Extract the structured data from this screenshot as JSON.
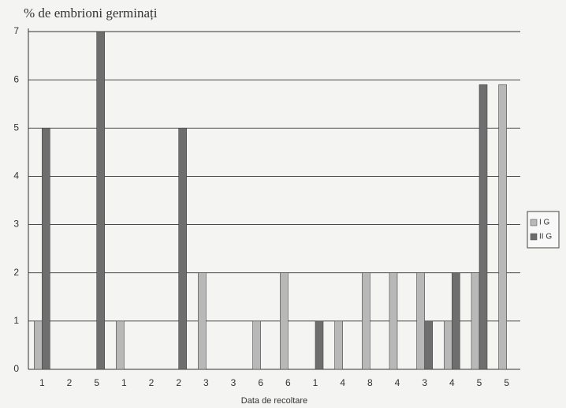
{
  "chart_data": {
    "type": "bar",
    "title": "% de embrioni germinați",
    "x_label": "Data de recoltare",
    "categories": [
      "1",
      "2",
      "5",
      "1",
      "2",
      "2",
      "3",
      "3",
      "6",
      "6",
      "1",
      "4",
      "8",
      "4",
      "3",
      "4",
      "5",
      "5"
    ],
    "series": [
      {
        "name": "I G",
        "color": "#b8b8b8",
        "values": [
          1,
          0,
          0,
          1,
          0,
          0,
          2,
          0,
          1,
          2,
          0,
          1,
          2,
          2,
          2,
          1,
          2,
          5.9
        ]
      },
      {
        "name": "II G",
        "color": "#6e6e6e",
        "values": [
          5,
          0,
          7,
          0,
          0,
          5,
          0,
          0,
          0,
          0,
          1,
          0,
          0,
          0,
          1,
          2,
          5.9,
          0
        ]
      }
    ],
    "ylim": [
      0,
      7
    ],
    "yticks": [
      0,
      1,
      2,
      3,
      4,
      5,
      6,
      7
    ],
    "grid": true,
    "legend": "right"
  }
}
